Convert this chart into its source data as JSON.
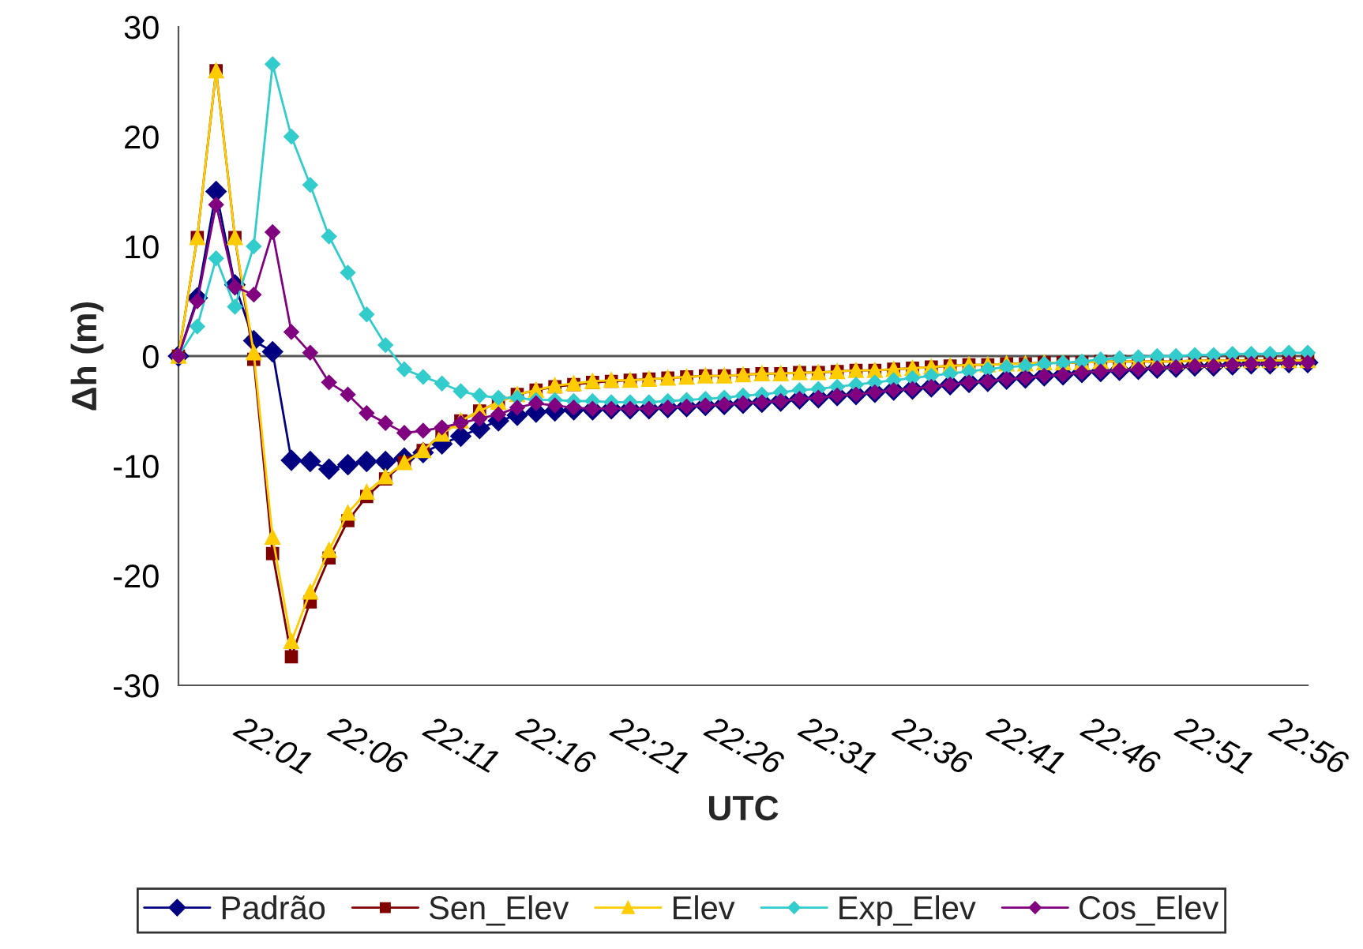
{
  "chart_data": {
    "type": "line",
    "xlabel": "UTC",
    "ylabel": "Δh (m)",
    "categories": [
      null,
      null,
      null,
      null,
      null,
      "22:01",
      null,
      null,
      null,
      null,
      "22:06",
      null,
      null,
      null,
      null,
      "22:11",
      null,
      null,
      null,
      null,
      "22:16",
      null,
      null,
      null,
      null,
      "22:21",
      null,
      null,
      null,
      null,
      "22:26",
      null,
      null,
      null,
      null,
      "22:31",
      null,
      null,
      null,
      null,
      "22:36",
      null,
      null,
      null,
      null,
      "22:41",
      null,
      null,
      null,
      null,
      "22:46",
      null,
      null,
      null,
      null,
      "22:51",
      null,
      null,
      null,
      null,
      "22:56"
    ],
    "ylim": [
      -30,
      30
    ],
    "yticks": [
      -30,
      -20,
      -10,
      0,
      10,
      20,
      30
    ],
    "grid": false,
    "legend": "bottom",
    "ref_lines": [
      {
        "axis": "y",
        "value": 0,
        "color": "#555555"
      }
    ],
    "series": [
      {
        "name": "Padrão",
        "color": "#000080",
        "marker": "diamond",
        "values": [
          0,
          5.3,
          15,
          6.5,
          1.4,
          0.4,
          -9.5,
          -9.6,
          -10.3,
          -9.9,
          -9.6,
          -9.6,
          -9.3,
          -8.8,
          -8,
          -7.3,
          -6.6,
          -5.9,
          -5.4,
          -5.1,
          -5.0,
          -4.9,
          -4.9,
          -4.8,
          -4.8,
          -4.8,
          -4.7,
          -4.6,
          -4.5,
          -4.4,
          -4.3,
          -4.2,
          -4.1,
          -3.9,
          -3.8,
          -3.6,
          -3.5,
          -3.3,
          -3.1,
          -3.0,
          -2.8,
          -2.6,
          -2.4,
          -2.3,
          -2.1,
          -2.0,
          -1.8,
          -1.7,
          -1.5,
          -1.4,
          -1.3,
          -1.2,
          -1.1,
          -1.0,
          -0.9,
          -0.9,
          -0.8,
          -0.7,
          -0.7,
          -0.6,
          -0.6
        ]
      },
      {
        "name": "Sen_Elev",
        "color": "#800000",
        "marker": "square",
        "values": [
          0,
          10.8,
          26,
          10.8,
          -0.3,
          -18,
          -27.4,
          -22.4,
          -18.4,
          -15,
          -12.8,
          -11.2,
          -9.7,
          -8.6,
          -7.1,
          -5.9,
          -5,
          -4.2,
          -3.5,
          -3.1,
          -2.8,
          -2.6,
          -2.4,
          -2.3,
          -2.2,
          -2.1,
          -2.0,
          -1.9,
          -1.8,
          -1.8,
          -1.7,
          -1.6,
          -1.6,
          -1.5,
          -1.5,
          -1.4,
          -1.3,
          -1.3,
          -1.2,
          -1.1,
          -1.0,
          -0.9,
          -0.8,
          -0.8,
          -0.7,
          -0.7,
          -0.6,
          -0.6,
          -0.6,
          -0.5,
          -0.5,
          -0.5,
          -0.5,
          -0.5,
          -0.4,
          -0.4,
          -0.4,
          -0.4,
          -0.4,
          -0.4,
          -0.4
        ]
      },
      {
        "name": "Elev",
        "color": "#ffcc00",
        "marker": "triangle",
        "values": [
          0,
          10.8,
          26,
          10.8,
          0.3,
          -16.5,
          -26,
          -21.5,
          -17.7,
          -14.3,
          -12.4,
          -11,
          -9.7,
          -8.6,
          -7.1,
          -5.9,
          -5,
          -4.2,
          -3.5,
          -3.1,
          -2.7,
          -2.5,
          -2.3,
          -2.2,
          -2.2,
          -2.1,
          -2.0,
          -1.9,
          -1.8,
          -1.8,
          -1.7,
          -1.6,
          -1.6,
          -1.5,
          -1.5,
          -1.4,
          -1.3,
          -1.3,
          -1.2,
          -1.1,
          -1.0,
          -0.9,
          -0.8,
          -0.8,
          -0.7,
          -0.7,
          -0.6,
          -0.6,
          -0.6,
          -0.5,
          -0.5,
          -0.5,
          -0.5,
          -0.5,
          -0.4,
          -0.4,
          -0.4,
          -0.4,
          -0.4,
          -0.4,
          -0.4
        ]
      },
      {
        "name": "Exp_Elev",
        "color": "#33cccc",
        "marker": "diamond",
        "values": [
          0,
          2.7,
          8.9,
          4.5,
          10,
          26.6,
          20,
          15.6,
          10.9,
          7.6,
          3.8,
          1,
          -1.2,
          -1.9,
          -2.5,
          -3.2,
          -3.6,
          -3.8,
          -3.8,
          -4,
          -4.0,
          -4.1,
          -4.1,
          -4.2,
          -4.2,
          -4.2,
          -4.1,
          -4.0,
          -3.9,
          -3.8,
          -3.6,
          -3.5,
          -3.3,
          -3.1,
          -3.0,
          -2.8,
          -2.6,
          -2.4,
          -2.2,
          -2.0,
          -1.8,
          -1.6,
          -1.4,
          -1.2,
          -1.0,
          -0.9,
          -0.7,
          -0.6,
          -0.5,
          -0.3,
          -0.2,
          -0.1,
          0.0,
          0.0,
          0.1,
          0.1,
          0.2,
          0.2,
          0.2,
          0.3,
          0.3
        ]
      },
      {
        "name": "Cos_Elev",
        "color": "#800080",
        "marker": "diamond",
        "values": [
          0,
          5,
          13.8,
          6.3,
          5.6,
          11.3,
          2.2,
          0.3,
          -2.4,
          -3.5,
          -5.2,
          -6.1,
          -7,
          -6.8,
          -6.5,
          -6.1,
          -5.7,
          -5.3,
          -4.7,
          -4.3,
          -4.5,
          -4.7,
          -4.8,
          -4.8,
          -4.8,
          -4.8,
          -4.7,
          -4.6,
          -4.5,
          -4.4,
          -4.3,
          -4.2,
          -4.1,
          -3.9,
          -3.8,
          -3.6,
          -3.5,
          -3.3,
          -3.1,
          -3.0,
          -2.8,
          -2.6,
          -2.4,
          -2.3,
          -2.1,
          -2.0,
          -1.8,
          -1.7,
          -1.5,
          -1.4,
          -1.3,
          -1.2,
          -1.1,
          -1.0,
          -0.9,
          -0.9,
          -0.8,
          -0.7,
          -0.7,
          -0.6,
          -0.6
        ]
      }
    ]
  }
}
